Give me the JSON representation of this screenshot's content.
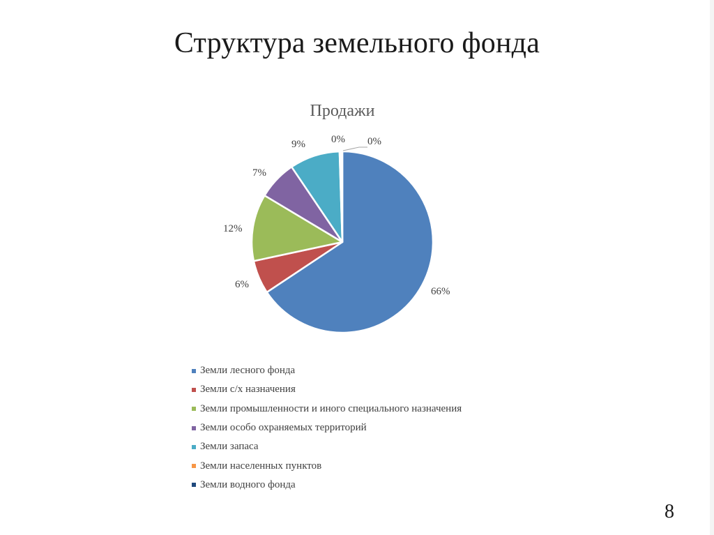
{
  "slide": {
    "title": "Структура земельного фонда",
    "number": "8"
  },
  "chart_data": {
    "type": "pie",
    "title": "Продажи",
    "categories": [
      "Земли лесного фонда",
      "Земли с/х назначения",
      "Земли промышленности и иного специального назначения",
      "Земли особо охраняемых территорий",
      "Земли запаса",
      "Земли населенных пунктов",
      "Земли водного фонда"
    ],
    "values": [
      66,
      6,
      12,
      7,
      9,
      0,
      0
    ],
    "labels": [
      "66%",
      "6%",
      "12%",
      "7%",
      "9%",
      "0%",
      "0%"
    ],
    "colors": [
      "#4f81bd",
      "#c0504d",
      "#9bbb59",
      "#8064a2",
      "#4bacc6",
      "#f79646",
      "#1f497d"
    ],
    "start_angle": "12 o'clock, clockwise",
    "legend_position": "bottom",
    "data_labels": "outside end, percentage"
  },
  "legend": {
    "items": [
      {
        "label": "Земли лесного фонда",
        "color": "#4f81bd"
      },
      {
        "label": "Земли с/х назначения",
        "color": "#c0504d"
      },
      {
        "label": "Земли промышленности и иного специального назначения",
        "color": "#9bbb59"
      },
      {
        "label": "Земли особо охраняемых территорий",
        "color": "#8064a2"
      },
      {
        "label": "Земли запаса",
        "color": "#4bacc6"
      },
      {
        "label": "Земли населенных пунктов",
        "color": "#f79646"
      },
      {
        "label": "Земли водного фонда",
        "color": "#1f497d"
      }
    ]
  }
}
